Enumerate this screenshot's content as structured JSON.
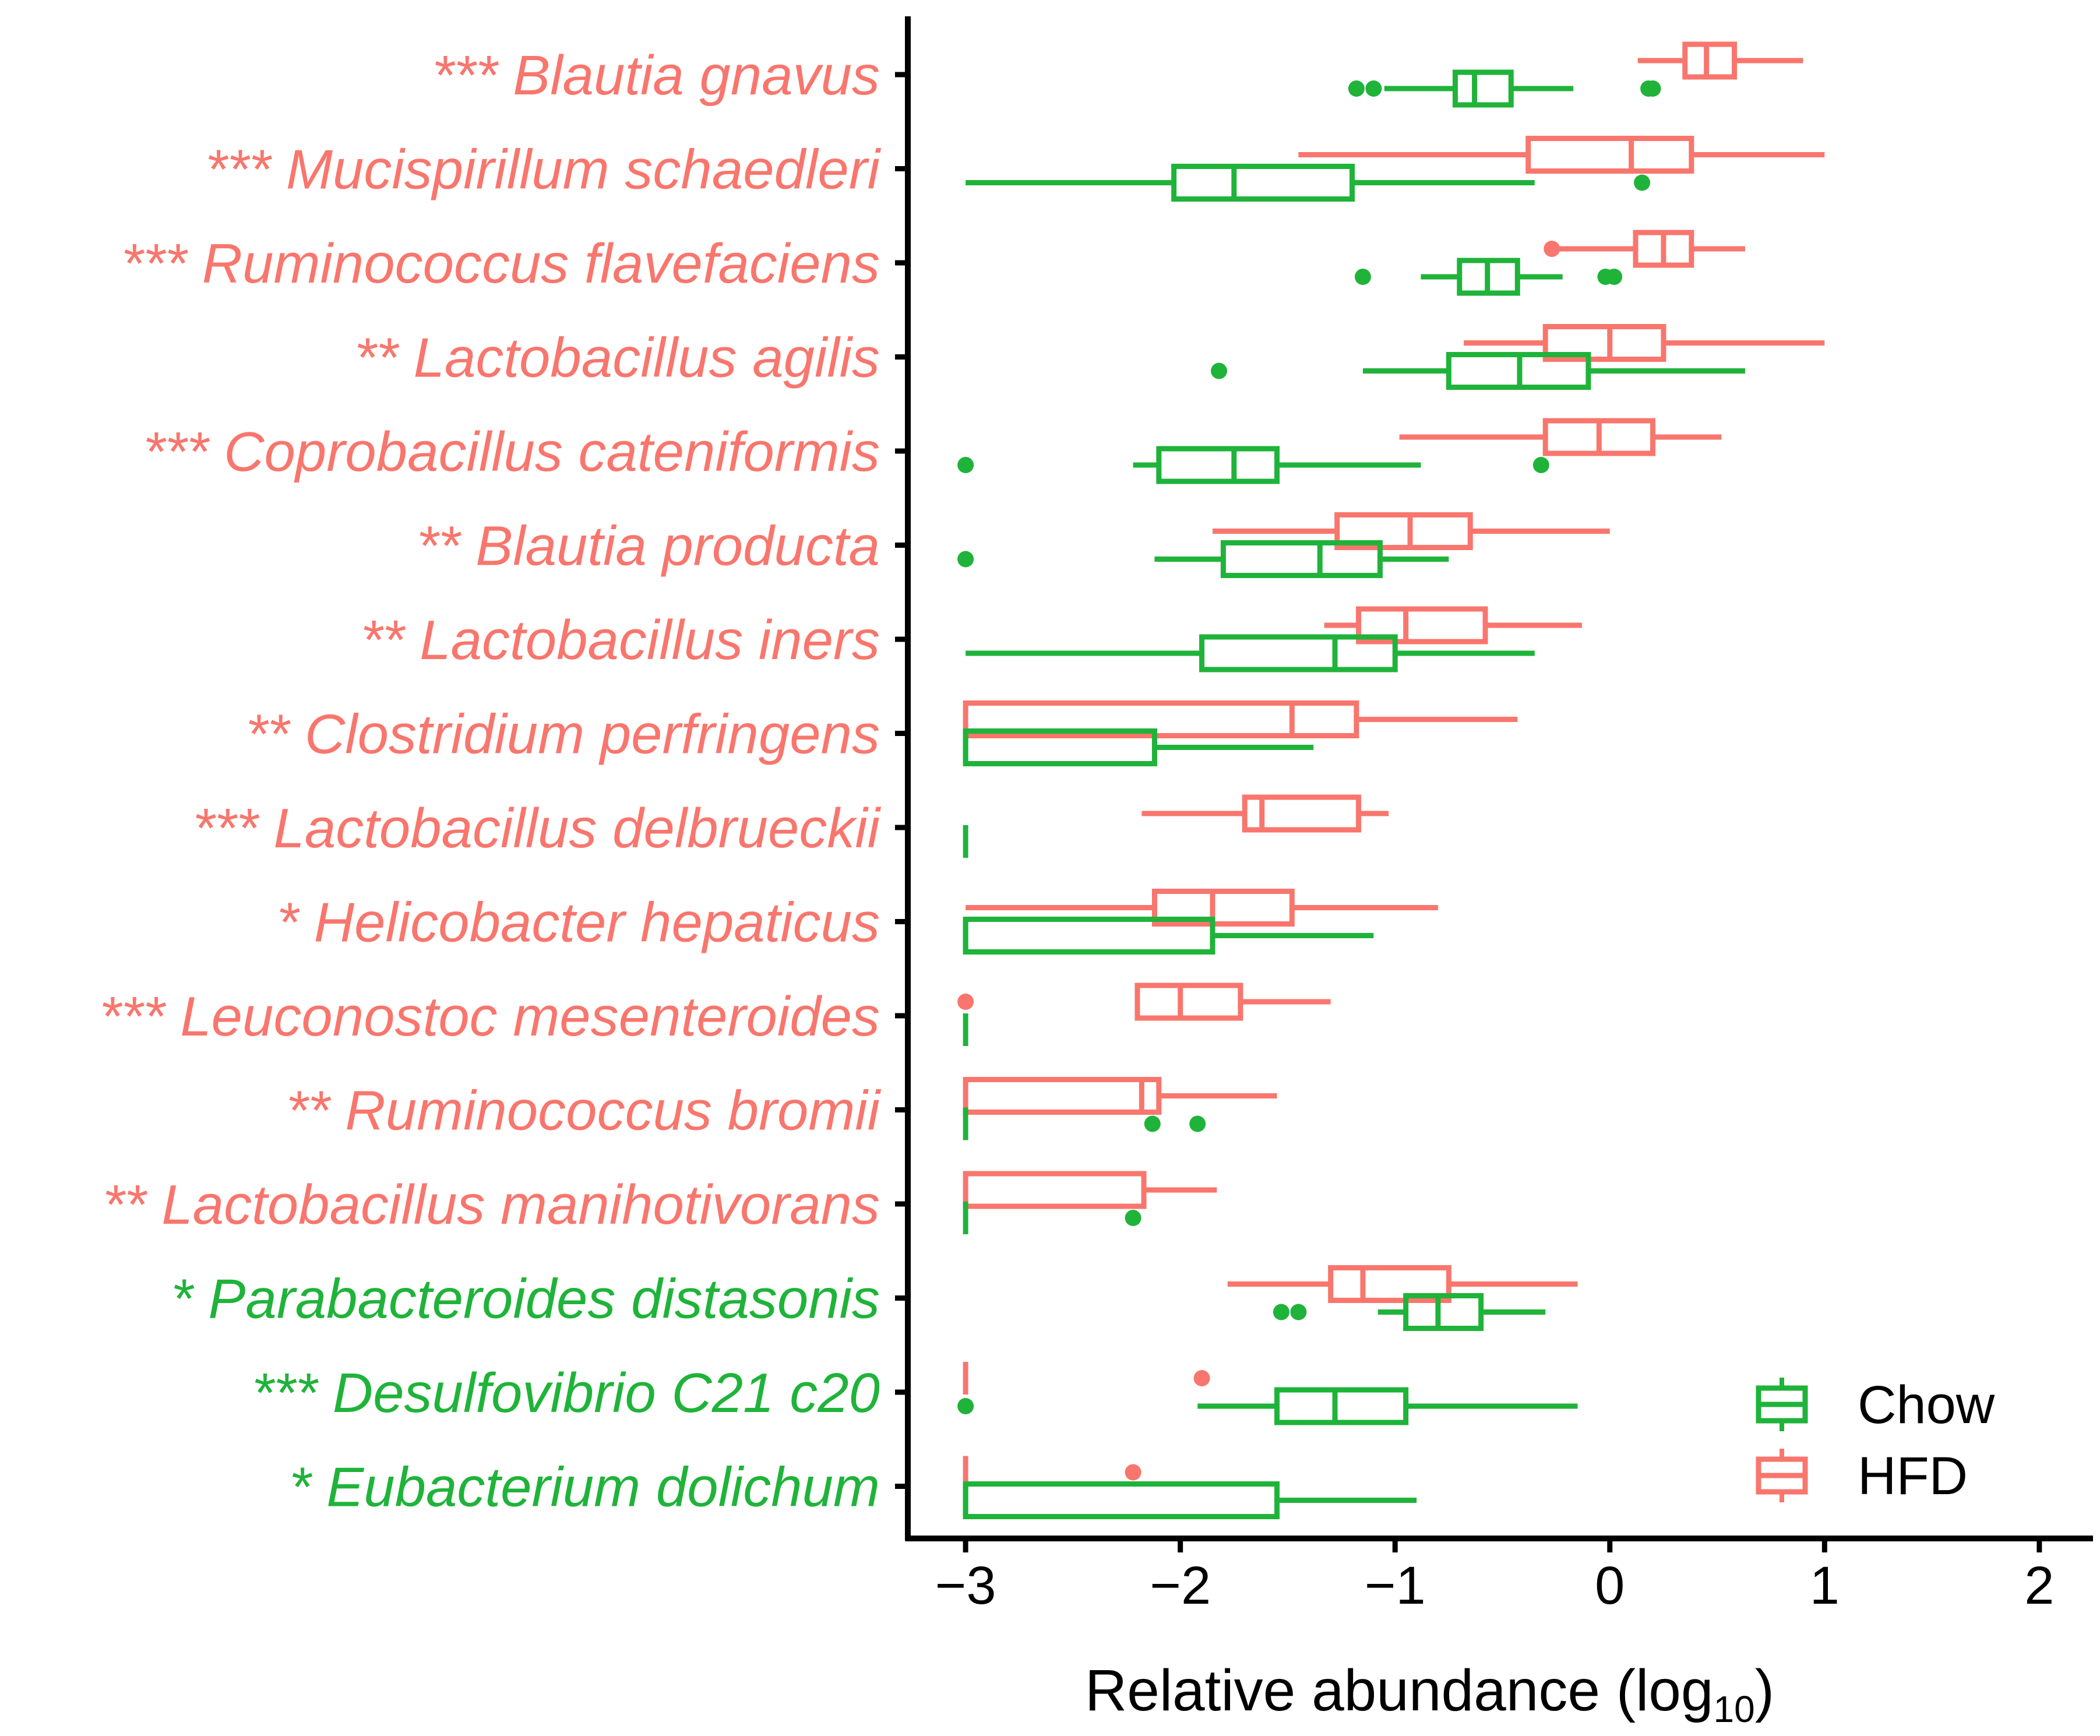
{
  "chart_data": {
    "type": "boxplot",
    "orientation": "horizontal",
    "xlabel_main": "Relative abundance (log",
    "xlabel_sub": "10",
    "xlabel_close": ")",
    "xlim": [
      -3.25,
      2.25
    ],
    "xticks": [
      -3,
      -2,
      -1,
      0,
      1,
      2
    ],
    "xtick_labels": [
      "−3",
      "−2",
      "−1",
      "0",
      "1",
      "2"
    ],
    "colors": {
      "Chow": "#1fb33a",
      "HFD": "#f8766d"
    },
    "legend": {
      "position": "bottom-right",
      "entries": [
        "Chow",
        "HFD"
      ]
    },
    "categories": [
      {
        "label": "*** Blautia gnavus",
        "enriched": "HFD",
        "HFD": {
          "whisker_low": 0.13,
          "q1": 0.35,
          "median": 0.45,
          "q3": 0.58,
          "whisker_high": 0.9,
          "outliers": []
        },
        "Chow": {
          "whisker_low": -1.05,
          "q1": -0.72,
          "median": -0.63,
          "q3": -0.46,
          "whisker_high": -0.17,
          "outliers": [
            -1.18,
            -1.1,
            0.18,
            0.2
          ]
        }
      },
      {
        "label": "*** Mucispirillum schaedleri",
        "enriched": "HFD",
        "HFD": {
          "whisker_low": -1.45,
          "q1": -0.38,
          "median": 0.1,
          "q3": 0.38,
          "whisker_high": 1.0,
          "outliers": []
        },
        "Chow": {
          "whisker_low": -3.0,
          "q1": -2.03,
          "median": -1.75,
          "q3": -1.2,
          "whisker_high": -0.35,
          "outliers": [
            0.15
          ]
        }
      },
      {
        "label": "*** Ruminococcus flavefaciens",
        "enriched": "HFD",
        "HFD": {
          "whisker_low": -0.25,
          "q1": 0.12,
          "median": 0.25,
          "q3": 0.38,
          "whisker_high": 0.63,
          "outliers": [
            -0.27
          ]
        },
        "Chow": {
          "whisker_low": -0.88,
          "q1": -0.7,
          "median": -0.57,
          "q3": -0.43,
          "whisker_high": -0.22,
          "outliers": [
            -1.15,
            -0.02,
            0.02
          ]
        }
      },
      {
        "label": "** Lactobacillus agilis",
        "enriched": "HFD",
        "HFD": {
          "whisker_low": -0.68,
          "q1": -0.3,
          "median": 0.0,
          "q3": 0.25,
          "whisker_high": 1.0,
          "outliers": []
        },
        "Chow": {
          "whisker_low": -1.15,
          "q1": -0.75,
          "median": -0.42,
          "q3": -0.1,
          "whisker_high": 0.63,
          "outliers": [
            -1.82
          ]
        }
      },
      {
        "label": "*** Coprobacillus cateniformis",
        "enriched": "HFD",
        "HFD": {
          "whisker_low": -0.98,
          "q1": -0.3,
          "median": -0.05,
          "q3": 0.2,
          "whisker_high": 0.52,
          "outliers": []
        },
        "Chow": {
          "whisker_low": -2.22,
          "q1": -2.1,
          "median": -1.75,
          "q3": -1.55,
          "whisker_high": -0.88,
          "outliers": [
            -3.0,
            -0.32
          ]
        }
      },
      {
        "label": "** Blautia producta",
        "enriched": "HFD",
        "HFD": {
          "whisker_low": -1.85,
          "q1": -1.27,
          "median": -0.93,
          "q3": -0.65,
          "whisker_high": 0.0,
          "outliers": []
        },
        "Chow": {
          "whisker_low": -2.12,
          "q1": -1.8,
          "median": -1.35,
          "q3": -1.07,
          "whisker_high": -0.75,
          "outliers": [
            -3.0
          ]
        }
      },
      {
        "label": "** Lactobacillus iners",
        "enriched": "HFD",
        "HFD": {
          "whisker_low": -1.33,
          "q1": -1.17,
          "median": -0.95,
          "q3": -0.58,
          "whisker_high": -0.13,
          "outliers": []
        },
        "Chow": {
          "whisker_low": -3.0,
          "q1": -1.9,
          "median": -1.28,
          "q3": -1.0,
          "whisker_high": -0.35,
          "outliers": []
        }
      },
      {
        "label": "** Clostridium perfringens",
        "enriched": "HFD",
        "HFD": {
          "whisker_low": -3.0,
          "q1": -3.0,
          "median": -1.48,
          "q3": -1.18,
          "whisker_high": -0.43,
          "outliers": []
        },
        "Chow": {
          "whisker_low": -3.0,
          "q1": -3.0,
          "median": -3.0,
          "q3": -2.12,
          "whisker_high": -1.38,
          "outliers": []
        }
      },
      {
        "label": "*** Lactobacillus delbrueckii",
        "enriched": "HFD",
        "HFD": {
          "whisker_low": -2.18,
          "q1": -1.7,
          "median": -1.62,
          "q3": -1.17,
          "whisker_high": -1.03,
          "outliers": []
        },
        "Chow": {
          "whisker_low": -3.0,
          "q1": -3.0,
          "median": -3.0,
          "q3": -3.0,
          "whisker_high": -3.0,
          "outliers": []
        }
      },
      {
        "label": "* Helicobacter hepaticus",
        "enriched": "HFD",
        "HFD": {
          "whisker_low": -3.0,
          "q1": -2.12,
          "median": -1.85,
          "q3": -1.48,
          "whisker_high": -0.8,
          "outliers": []
        },
        "Chow": {
          "whisker_low": -3.0,
          "q1": -3.0,
          "median": -3.0,
          "q3": -1.85,
          "whisker_high": -1.1,
          "outliers": []
        }
      },
      {
        "label": "*** Leuconostoc mesenteroides",
        "enriched": "HFD",
        "HFD": {
          "whisker_low": -2.2,
          "q1": -2.2,
          "median": -2.0,
          "q3": -1.72,
          "whisker_high": -1.3,
          "outliers": [
            -3.0
          ]
        },
        "Chow": {
          "whisker_low": -3.0,
          "q1": -3.0,
          "median": -3.0,
          "q3": -3.0,
          "whisker_high": -3.0,
          "outliers": []
        }
      },
      {
        "label": "** Ruminococcus bromii",
        "enriched": "HFD",
        "HFD": {
          "whisker_low": -3.0,
          "q1": -3.0,
          "median": -2.18,
          "q3": -2.1,
          "whisker_high": -1.55,
          "outliers": []
        },
        "Chow": {
          "whisker_low": -3.0,
          "q1": -3.0,
          "median": -3.0,
          "q3": -3.0,
          "whisker_high": -3.0,
          "outliers": [
            -2.13,
            -1.92
          ]
        }
      },
      {
        "label": "** Lactobacillus manihotivorans",
        "enriched": "HFD",
        "HFD": {
          "whisker_low": -3.0,
          "q1": -3.0,
          "median": -2.17,
          "q3": -2.17,
          "whisker_high": -1.83,
          "outliers": []
        },
        "Chow": {
          "whisker_low": -3.0,
          "q1": -3.0,
          "median": -3.0,
          "q3": -3.0,
          "whisker_high": -3.0,
          "outliers": [
            -2.22
          ]
        }
      },
      {
        "label": "* Parabacteroides distasonis",
        "enriched": "Chow",
        "HFD": {
          "whisker_low": -1.78,
          "q1": -1.3,
          "median": -1.15,
          "q3": -0.75,
          "whisker_high": -0.15,
          "outliers": []
        },
        "Chow": {
          "whisker_low": -1.08,
          "q1": -0.95,
          "median": -0.8,
          "q3": -0.6,
          "whisker_high": -0.3,
          "outliers": [
            -1.53,
            -1.45
          ]
        }
      },
      {
        "label": "*** Desulfovibrio C21 c20",
        "enriched": "Chow",
        "HFD": {
          "whisker_low": -3.0,
          "q1": -3.0,
          "median": -3.0,
          "q3": -3.0,
          "whisker_high": -3.0,
          "outliers": [
            -1.9
          ]
        },
        "Chow": {
          "whisker_low": -1.92,
          "q1": -1.55,
          "median": -1.28,
          "q3": -0.95,
          "whisker_high": -0.15,
          "outliers": [
            -3.0
          ]
        }
      },
      {
        "label": "* Eubacterium dolichum",
        "enriched": "Chow",
        "HFD": {
          "whisker_low": -3.0,
          "q1": -3.0,
          "median": -3.0,
          "q3": -3.0,
          "whisker_high": -3.0,
          "outliers": [
            -2.22
          ]
        },
        "Chow": {
          "whisker_low": -3.0,
          "q1": -3.0,
          "median": -3.0,
          "q3": -1.55,
          "whisker_high": -0.9,
          "outliers": []
        }
      }
    ]
  }
}
